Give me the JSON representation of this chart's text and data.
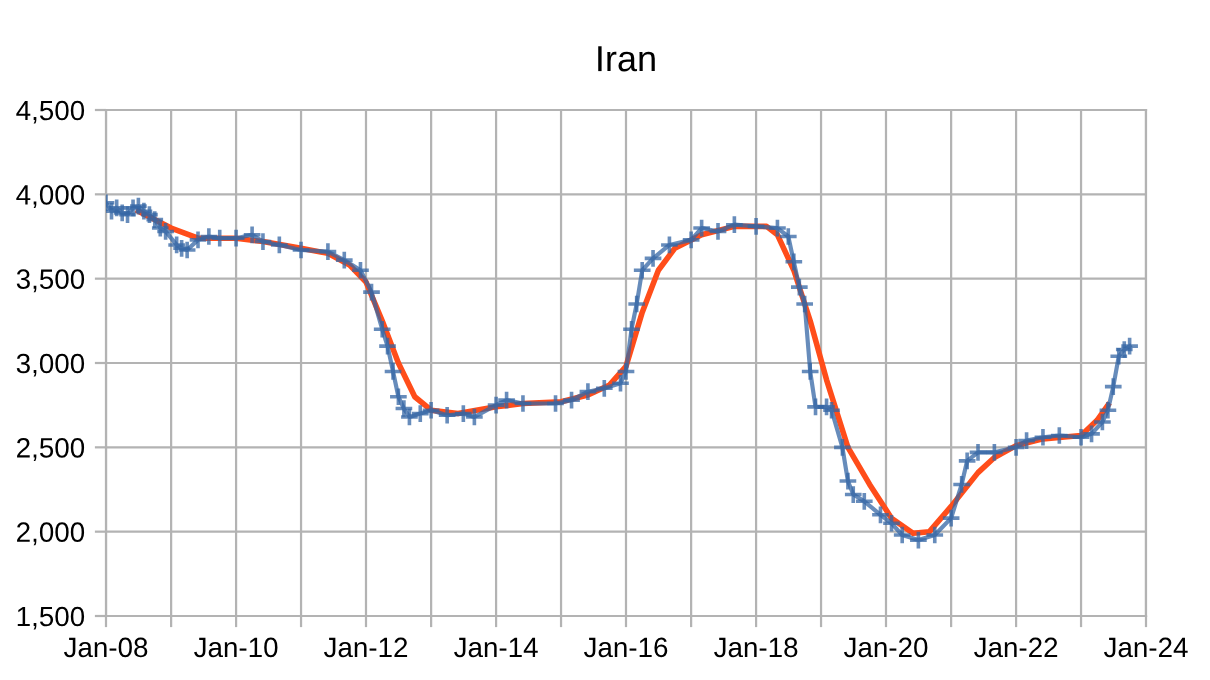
{
  "chart_data": {
    "type": "line",
    "title": "Iran",
    "xlim": [
      "2008-01",
      "2024-01"
    ],
    "ylim": [
      1500,
      4500
    ],
    "xticks": [
      {
        "value": "2008-01",
        "label": "Jan-08"
      },
      {
        "value": "2009-01",
        "label": null
      },
      {
        "value": "2010-01",
        "label": "Jan-10"
      },
      {
        "value": "2011-01",
        "label": null
      },
      {
        "value": "2012-01",
        "label": "Jan-12"
      },
      {
        "value": "2013-01",
        "label": null
      },
      {
        "value": "2014-01",
        "label": "Jan-14"
      },
      {
        "value": "2015-01",
        "label": null
      },
      {
        "value": "2016-01",
        "label": "Jan-16"
      },
      {
        "value": "2017-01",
        "label": null
      },
      {
        "value": "2018-01",
        "label": "Jan-18"
      },
      {
        "value": "2019-01",
        "label": null
      },
      {
        "value": "2020-01",
        "label": "Jan-20"
      },
      {
        "value": "2021-01",
        "label": null
      },
      {
        "value": "2022-01",
        "label": "Jan-22"
      },
      {
        "value": "2023-01",
        "label": null
      },
      {
        "value": "2024-01",
        "label": "Jan-24"
      }
    ],
    "yticks": [
      {
        "value": 1500,
        "label": "1,500"
      },
      {
        "value": 2000,
        "label": "2,000"
      },
      {
        "value": 2500,
        "label": "2,500"
      },
      {
        "value": 3000,
        "label": "3,000"
      },
      {
        "value": 3500,
        "label": "3,500"
      },
      {
        "value": 4000,
        "label": "4,000"
      },
      {
        "value": 4500,
        "label": "4,500"
      }
    ],
    "grid": true,
    "legend": false,
    "line_style": "solid",
    "series": [
      {
        "color": "#ff4d1a",
        "marker": "none",
        "x": [
          "2008-07",
          "2009-01",
          "2009-06",
          "2010-01",
          "2010-06",
          "2011-01",
          "2011-06",
          "2011-10",
          "2012-01",
          "2012-04",
          "2012-07",
          "2012-10",
          "2013-01",
          "2013-06",
          "2014-01",
          "2014-06",
          "2015-01",
          "2015-06",
          "2015-10",
          "2016-01",
          "2016-04",
          "2016-07",
          "2016-10",
          "2017-03",
          "2017-09",
          "2018-03",
          "2018-05",
          "2018-08",
          "2018-11",
          "2019-02",
          "2019-06",
          "2019-10",
          "2020-02",
          "2020-06",
          "2020-09",
          "2021-01",
          "2021-06",
          "2021-09",
          "2022-01",
          "2022-06",
          "2023-01",
          "2023-04",
          "2023-06"
        ],
        "values": [
          3900,
          3800,
          3740,
          3740,
          3720,
          3680,
          3650,
          3580,
          3480,
          3250,
          3000,
          2800,
          2720,
          2700,
          2740,
          2760,
          2770,
          2810,
          2870,
          2980,
          3300,
          3550,
          3680,
          3760,
          3810,
          3810,
          3760,
          3550,
          3250,
          2900,
          2500,
          2280,
          2080,
          1990,
          2000,
          2150,
          2350,
          2440,
          2510,
          2550,
          2570,
          2660,
          2750
        ]
      },
      {
        "color": "#3465a4",
        "marker": "cross",
        "x": [
          "2008-01",
          "2008-02",
          "2008-03",
          "2008-04",
          "2008-05",
          "2008-06",
          "2008-07",
          "2008-08",
          "2008-09",
          "2008-10",
          "2008-11",
          "2008-12",
          "2009-02",
          "2009-03",
          "2009-04",
          "2009-06",
          "2009-08",
          "2009-10",
          "2010-01",
          "2010-04",
          "2010-06",
          "2010-09",
          "2011-01",
          "2011-06",
          "2011-09",
          "2011-12",
          "2012-02",
          "2012-04",
          "2012-05",
          "2012-06",
          "2012-07",
          "2012-08",
          "2012-09",
          "2012-11",
          "2013-01",
          "2013-04",
          "2013-07",
          "2013-09",
          "2014-01",
          "2014-03",
          "2014-06",
          "2014-12",
          "2015-03",
          "2015-06",
          "2015-09",
          "2015-12",
          "2016-01",
          "2016-02",
          "2016-03",
          "2016-04",
          "2016-06",
          "2016-09",
          "2017-01",
          "2017-03",
          "2017-06",
          "2017-09",
          "2018-01",
          "2018-05",
          "2018-07",
          "2018-08",
          "2018-09",
          "2018-10",
          "2018-11",
          "2018-12",
          "2019-02",
          "2019-03",
          "2019-05",
          "2019-06",
          "2019-07",
          "2019-09",
          "2019-12",
          "2020-02",
          "2020-04",
          "2020-07",
          "2020-10",
          "2021-01",
          "2021-03",
          "2021-04",
          "2021-06",
          "2021-09",
          "2022-01",
          "2022-03",
          "2022-06",
          "2022-09",
          "2023-01",
          "2023-03",
          "2023-05",
          "2023-06",
          "2023-07",
          "2023-08",
          "2023-09",
          "2023-10"
        ],
        "values": [
          3950,
          3900,
          3920,
          3890,
          3880,
          3920,
          3930,
          3900,
          3880,
          3850,
          3800,
          3780,
          3700,
          3680,
          3670,
          3730,
          3750,
          3740,
          3740,
          3760,
          3720,
          3700,
          3670,
          3660,
          3610,
          3550,
          3420,
          3200,
          3100,
          2950,
          2800,
          2730,
          2680,
          2700,
          2720,
          2690,
          2700,
          2680,
          2750,
          2780,
          2760,
          2760,
          2780,
          2830,
          2850,
          2880,
          2950,
          3200,
          3350,
          3550,
          3620,
          3700,
          3730,
          3800,
          3780,
          3820,
          3810,
          3800,
          3750,
          3600,
          3450,
          3350,
          2950,
          2740,
          2740,
          2720,
          2500,
          2300,
          2220,
          2180,
          2100,
          2050,
          1980,
          1950,
          1980,
          2080,
          2280,
          2420,
          2470,
          2470,
          2500,
          2540,
          2560,
          2570,
          2560,
          2580,
          2650,
          2720,
          2860,
          3040,
          3080,
          3100
        ]
      }
    ]
  }
}
